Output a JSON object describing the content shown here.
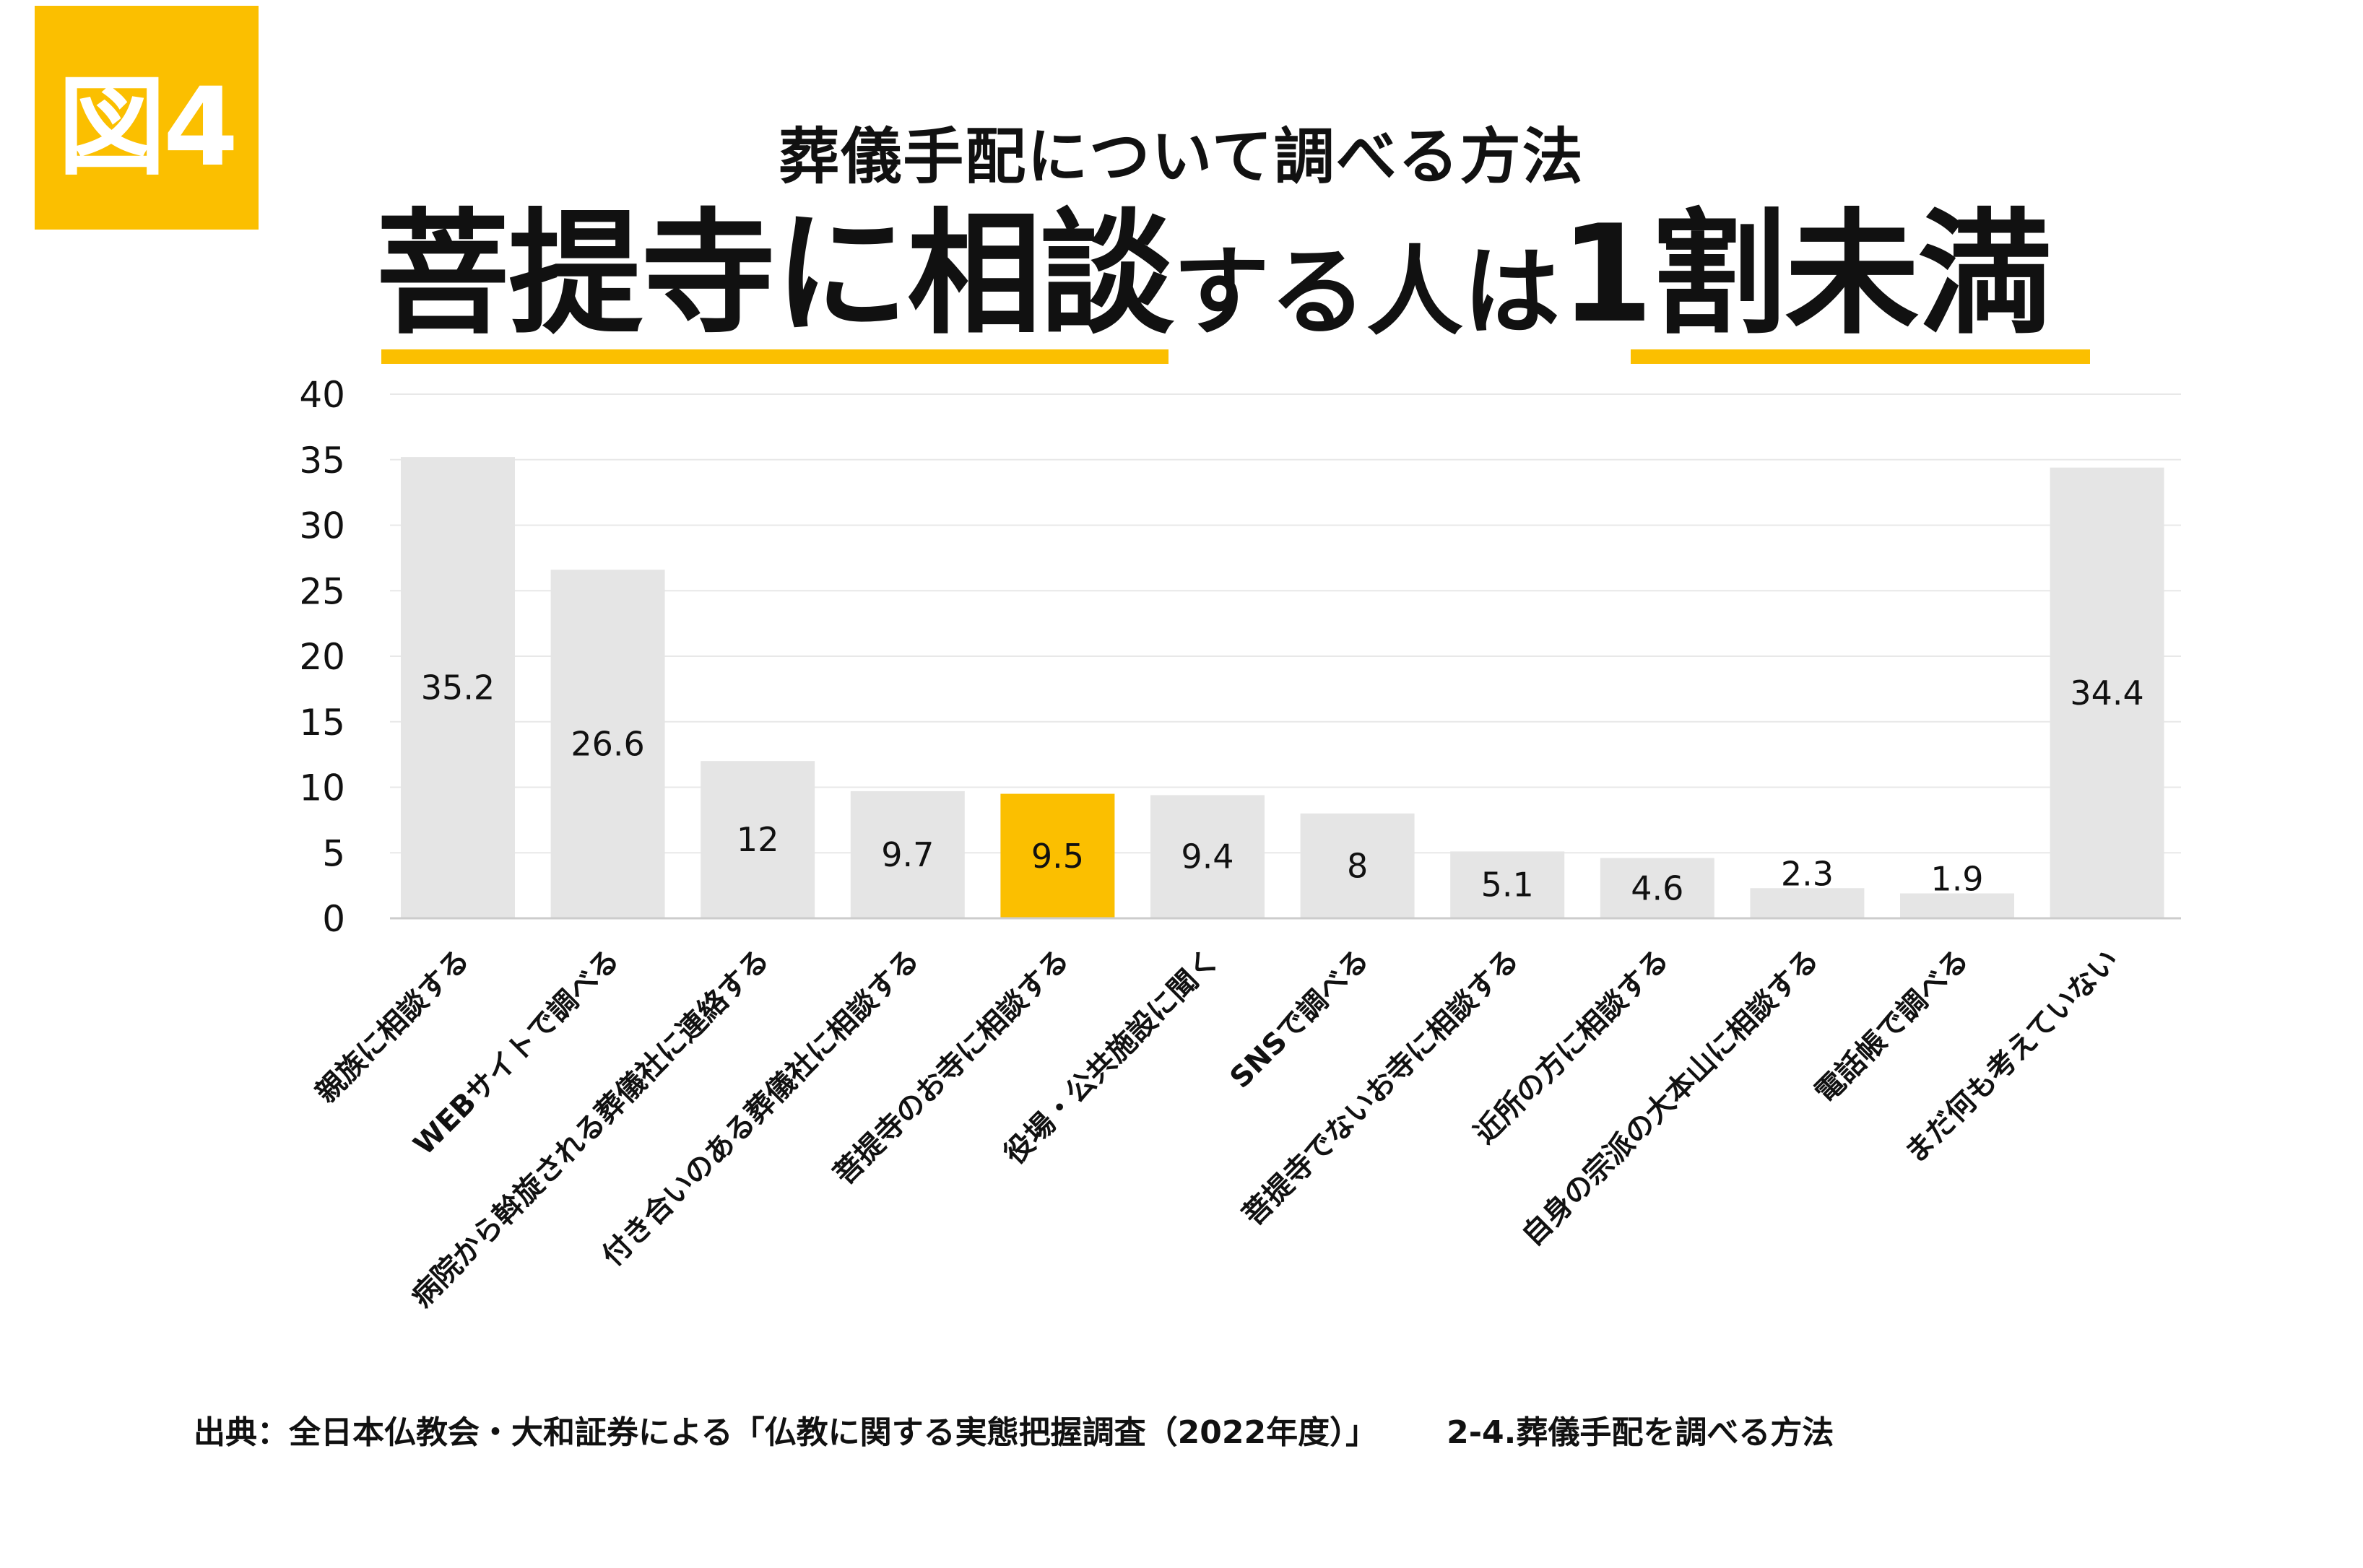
{
  "badge": "図4",
  "subtitle": "葬儀手配について調べる方法",
  "headline": {
    "part1": "菩提寺に相談",
    "part2": "する人は",
    "part3": "1割未満"
  },
  "colors": {
    "accent": "#fbbf00",
    "bar": "#e5e5e5",
    "highlight": "#fbbf00",
    "grid": "#e8e8e8",
    "axis": "#cccccc",
    "text": "#111111"
  },
  "source": {
    "citation": "出典：全日本仏教会・大和証券による「仏教に関する実態把握調査（2022年度）」",
    "section": "2-4.葬儀手配を調べる方法"
  },
  "chart_data": {
    "type": "bar",
    "title": "葬儀手配について調べる方法",
    "xlabel": "",
    "ylabel": "",
    "ylim": [
      0,
      40
    ],
    "yticks": [
      0,
      5,
      10,
      15,
      20,
      25,
      30,
      35,
      40
    ],
    "grid": true,
    "categories": [
      "親族に相談する",
      "WEBサイトで調べる",
      "病院から斡旋される葬儀社に連絡する",
      "付き合いのある葬儀社に相談する",
      "菩提寺のお寺に相談する",
      "役場・公共施設に聞く",
      "SNSで調べる",
      "菩提寺でないお寺に相談する",
      "近所の方に相談する",
      "自身の宗派の大本山に相談する",
      "電話帳で調べる",
      "まだ何も考えていない"
    ],
    "values": [
      35.2,
      26.6,
      12,
      9.7,
      9.5,
      9.4,
      8,
      5.1,
      4.6,
      2.3,
      1.9,
      34.4
    ],
    "value_labels": [
      "35.2",
      "26.6",
      "12",
      "9.7",
      "9.5",
      "9.4",
      "8",
      "5.1",
      "4.6",
      "2.3",
      "1.9",
      "34.4"
    ],
    "highlight_index": 4
  }
}
